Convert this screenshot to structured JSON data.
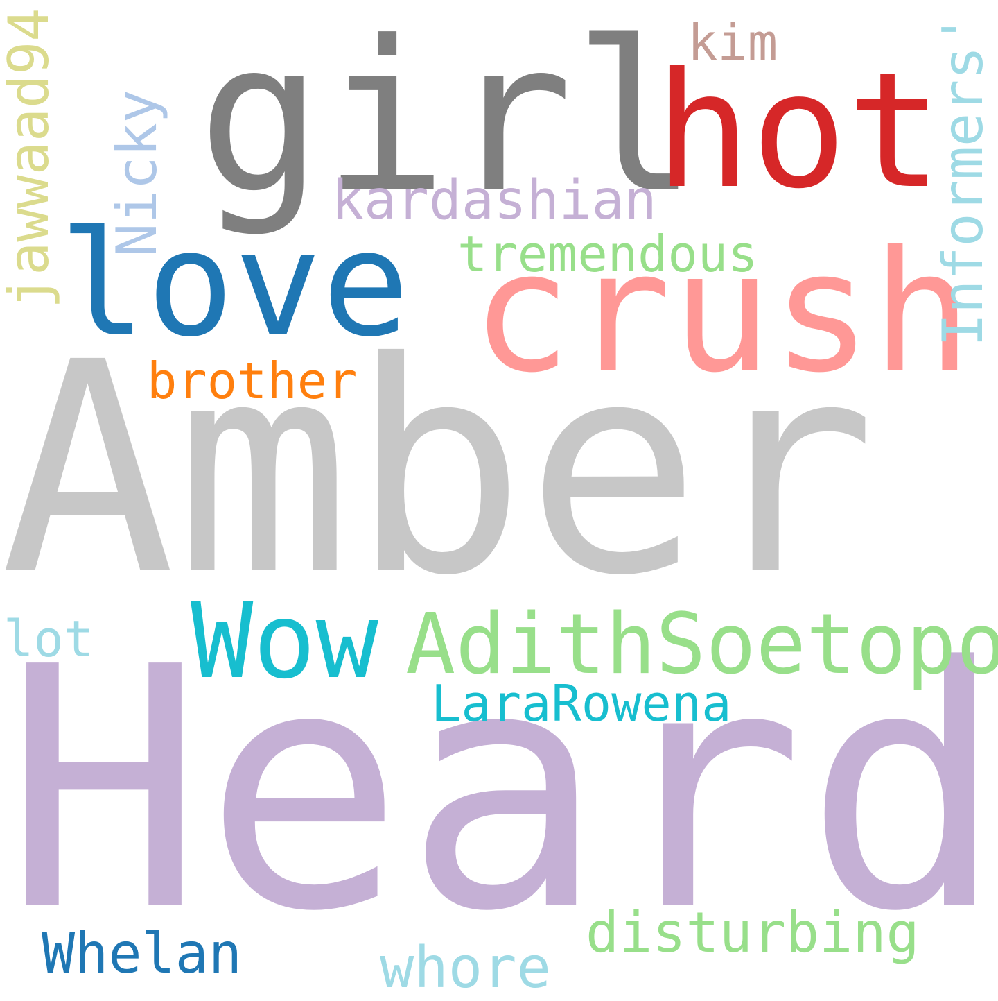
{
  "word_cloud": {
    "background": "#ffffff",
    "words": [
      {
        "key": "heard",
        "text": "Heard",
        "color": "#c5b0d5"
      },
      {
        "key": "amber",
        "text": "Amber",
        "color": "#c7c7c7"
      },
      {
        "key": "girl",
        "text": "girl",
        "color": "#7f7f7f"
      },
      {
        "key": "hot",
        "text": "hot",
        "color": "#d62728"
      },
      {
        "key": "crush",
        "text": "crush",
        "color": "#ff9896"
      },
      {
        "key": "love",
        "text": "love",
        "color": "#1f77b4"
      },
      {
        "key": "wow",
        "text": "Wow",
        "color": "#17becf"
      },
      {
        "key": "adithsoetopo",
        "text": "AdithSoetopo",
        "color": "#98df8a"
      },
      {
        "key": "kardashian",
        "text": "kardashian",
        "color": "#c5b0d5"
      },
      {
        "key": "tremendous",
        "text": "tremendous",
        "color": "#98df8a"
      },
      {
        "key": "brother",
        "text": "brother",
        "color": "#ff7f0e"
      },
      {
        "key": "kim",
        "text": "kim",
        "color": "#c49c94"
      },
      {
        "key": "informers",
        "text": "Informers'",
        "color": "#9edae5"
      },
      {
        "key": "nicky",
        "text": "Nicky",
        "color": "#aec7e8"
      },
      {
        "key": "jawwaad94",
        "text": "jawwaad94",
        "color": "#dbdb8d"
      },
      {
        "key": "lararowena",
        "text": "LaraRowena",
        "color": "#17becf"
      },
      {
        "key": "lot",
        "text": "lot",
        "color": "#9edae5"
      },
      {
        "key": "whelan",
        "text": "Whelan",
        "color": "#1f77b4"
      },
      {
        "key": "whore",
        "text": "whore",
        "color": "#9edae5"
      },
      {
        "key": "disturbing",
        "text": "disturbing",
        "color": "#98df8a"
      }
    ]
  }
}
